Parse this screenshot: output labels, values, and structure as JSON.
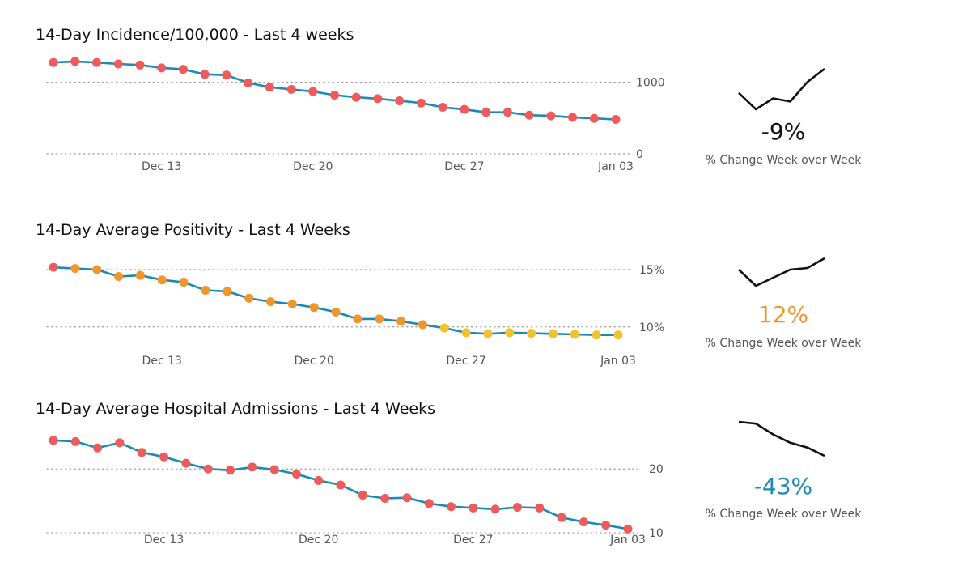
{
  "charts": [
    {
      "title": "14-Day Incidence/100,000 - Last 4 weeks",
      "kpi": {
        "value": "-9%",
        "label": "% Change Week over Week",
        "color": "#111111"
      },
      "sparkline": [
        1000,
        790,
        930,
        890,
        1140,
        1310
      ],
      "chart_data": {
        "type": "line",
        "title": "14-Day Incidence/100,000 - Last 4 weeks",
        "x": [
          "Dec 08",
          "Dec 09",
          "Dec 10",
          "Dec 11",
          "Dec 12",
          "Dec 13",
          "Dec 14",
          "Dec 15",
          "Dec 16",
          "Dec 17",
          "Dec 18",
          "Dec 19",
          "Dec 20",
          "Dec 21",
          "Dec 22",
          "Dec 23",
          "Dec 24",
          "Dec 25",
          "Dec 26",
          "Dec 27",
          "Dec 28",
          "Dec 29",
          "Dec 30",
          "Dec 31",
          "Jan 01",
          "Jan 02",
          "Jan 03"
        ],
        "xticks": [
          "Dec 13",
          "Dec 20",
          "Dec 27",
          "Jan 03"
        ],
        "yticks": [
          {
            "v": 0,
            "label": "0"
          },
          {
            "v": 1000,
            "label": "1000"
          }
        ],
        "ylim": [
          0,
          1300
        ],
        "series": [
          {
            "values": [
              1275,
              1290,
              1275,
              1255,
              1240,
              1200,
              1180,
              1110,
              1100,
              990,
              930,
              900,
              870,
              820,
              790,
              770,
              740,
              710,
              650,
              620,
              580,
              580,
              540,
              530,
              510,
              495,
              480
            ]
          }
        ],
        "point_colors": [
          "#ef5b5b",
          "#ef5b5b",
          "#ef5b5b",
          "#ef5b5b",
          "#ef5b5b",
          "#ef5b5b",
          "#ef5b5b",
          "#ef5b5b",
          "#ef5b5b",
          "#ef5b5b",
          "#ef5b5b",
          "#ef5b5b",
          "#ef5b5b",
          "#ef5b5b",
          "#ef5b5b",
          "#ef5b5b",
          "#ef5b5b",
          "#ef5b5b",
          "#ef5b5b",
          "#ef5b5b",
          "#ef5b5b",
          "#ef5b5b",
          "#ef5b5b",
          "#ef5b5b",
          "#ef5b5b",
          "#ef5b5b",
          "#ef5b5b"
        ],
        "line_color": "#1b8ab6",
        "grid": "dotted"
      }
    },
    {
      "title": "14-Day Average Positivity - Last 4 Weeks",
      "kpi": {
        "value": "12%",
        "label": "% Change Week over Week",
        "color": "#f0962c"
      },
      "sparkline": [
        9.9,
        8.9,
        9.4,
        9.9,
        10.0,
        10.6
      ],
      "chart_data": {
        "type": "line",
        "title": "14-Day Average Positivity - Last 4 Weeks",
        "x": [
          "Dec 08",
          "Dec 09",
          "Dec 10",
          "Dec 11",
          "Dec 12",
          "Dec 13",
          "Dec 14",
          "Dec 15",
          "Dec 16",
          "Dec 17",
          "Dec 18",
          "Dec 19",
          "Dec 20",
          "Dec 21",
          "Dec 22",
          "Dec 23",
          "Dec 24",
          "Dec 25",
          "Dec 26",
          "Dec 27",
          "Dec 28",
          "Dec 29",
          "Dec 30",
          "Dec 31",
          "Jan 01",
          "Jan 02",
          "Jan 03"
        ],
        "xticks": [
          "Dec 13",
          "Dec 20",
          "Dec 27",
          "Jan 03"
        ],
        "yticks": [
          {
            "v": 10,
            "label": "10%"
          },
          {
            "v": 15,
            "label": "15%"
          }
        ],
        "ylim": [
          8.5,
          16.2
        ],
        "series": [
          {
            "values": [
              15.2,
              15.1,
              15.0,
              14.4,
              14.5,
              14.1,
              13.9,
              13.2,
              13.1,
              12.5,
              12.2,
              12.0,
              11.7,
              11.3,
              10.7,
              10.7,
              10.5,
              10.2,
              9.9,
              9.5,
              9.4,
              9.5,
              9.45,
              9.4,
              9.35,
              9.3,
              9.3
            ]
          }
        ],
        "point_colors": [
          "#ef5b5b",
          "#f0962c",
          "#f0962c",
          "#f0962c",
          "#f0962c",
          "#f0962c",
          "#f0962c",
          "#f0962c",
          "#f0962c",
          "#f0962c",
          "#f0962c",
          "#f0962c",
          "#f0962c",
          "#f0962c",
          "#f0962c",
          "#f0962c",
          "#f0962c",
          "#f0962c",
          "#f2c12e",
          "#f2c12e",
          "#f2c12e",
          "#f2c12e",
          "#f2c12e",
          "#f2c12e",
          "#f2c12e",
          "#f2c12e",
          "#f2c12e"
        ],
        "line_color": "#1b8ab6",
        "grid": "dotted"
      }
    },
    {
      "title": "14-Day Average Hospital Admissions - Last 4 Weeks",
      "kpi": {
        "value": "-43%",
        "label": "% Change Week over Week",
        "color": "#1b8ab6"
      },
      "sparkline": [
        24.5,
        24.2,
        22.4,
        21.0,
        20.2,
        18.8
      ],
      "chart_data": {
        "type": "line",
        "title": "14-Day Average Hospital Admissions - Last 4 Weeks",
        "x": [
          "Dec 08",
          "Dec 09",
          "Dec 10",
          "Dec 11",
          "Dec 12",
          "Dec 13",
          "Dec 14",
          "Dec 15",
          "Dec 16",
          "Dec 17",
          "Dec 18",
          "Dec 19",
          "Dec 20",
          "Dec 21",
          "Dec 22",
          "Dec 23",
          "Dec 24",
          "Dec 25",
          "Dec 26",
          "Dec 27",
          "Dec 28",
          "Dec 29",
          "Dec 30",
          "Dec 31",
          "Jan 01",
          "Jan 02",
          "Jan 03"
        ],
        "xticks": [
          "Dec 13",
          "Dec 20",
          "Dec 27",
          "Jan 03"
        ],
        "yticks": [
          {
            "v": 10,
            "label": "10"
          },
          {
            "v": 20,
            "label": "20"
          }
        ],
        "ylim": [
          9.5,
          26.5
        ],
        "series": [
          {
            "values": [
              24.5,
              24.3,
              23.3,
              24.1,
              22.6,
              21.9,
              20.9,
              20.0,
              19.8,
              20.3,
              19.9,
              19.2,
              18.2,
              17.5,
              15.9,
              15.4,
              15.5,
              14.6,
              14.1,
              13.9,
              13.7,
              14.0,
              13.9,
              12.4,
              11.7,
              11.2,
              10.6
            ]
          }
        ],
        "point_colors": [
          "#ef5b5b",
          "#ef5b5b",
          "#ef5b5b",
          "#ef5b5b",
          "#ef5b5b",
          "#ef5b5b",
          "#ef5b5b",
          "#ef5b5b",
          "#ef5b5b",
          "#ef5b5b",
          "#ef5b5b",
          "#ef5b5b",
          "#ef5b5b",
          "#ef5b5b",
          "#ef5b5b",
          "#ef5b5b",
          "#ef5b5b",
          "#ef5b5b",
          "#ef5b5b",
          "#ef5b5b",
          "#ef5b5b",
          "#ef5b5b",
          "#ef5b5b",
          "#ef5b5b",
          "#ef5b5b",
          "#ef5b5b",
          "#ef5b5b"
        ],
        "line_color": "#1b8ab6",
        "grid": "dotted"
      }
    }
  ]
}
